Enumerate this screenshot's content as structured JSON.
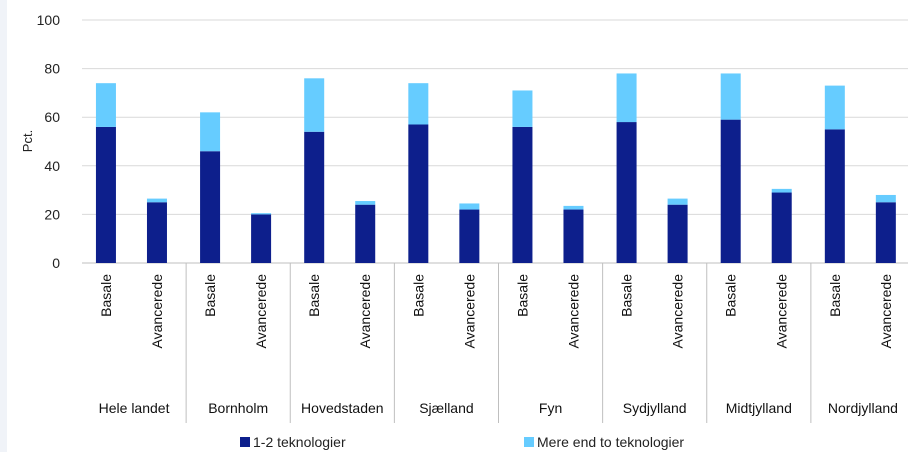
{
  "chart_data": {
    "type": "bar",
    "stacked": true,
    "ylabel": "Pct.",
    "ylim": [
      0,
      100
    ],
    "yticks": [
      0,
      20,
      40,
      60,
      80,
      100
    ],
    "grid": true,
    "legend_position": "bottom",
    "colors": {
      "s1": "#0d1f8c",
      "s2": "#66ccff",
      "grid": "#d9d9d9"
    },
    "groups": [
      {
        "label": "Hele landet",
        "categories": [
          "Basale",
          "Avancerede"
        ]
      },
      {
        "label": "Bornholm",
        "categories": [
          "Basale",
          "Avancerede"
        ]
      },
      {
        "label": "Hovedstaden",
        "categories": [
          "Basale",
          "Avancerede"
        ]
      },
      {
        "label": "Sjælland",
        "categories": [
          "Basale",
          "Avancerede"
        ]
      },
      {
        "label": "Fyn",
        "categories": [
          "Basale",
          "Avancerede"
        ]
      },
      {
        "label": "Sydjylland",
        "categories": [
          "Basale",
          "Avancerede"
        ]
      },
      {
        "label": "Midtjylland",
        "categories": [
          "Basale",
          "Avancerede"
        ]
      },
      {
        "label": "Nordjylland",
        "categories": [
          "Basale",
          "Avancerede"
        ]
      }
    ],
    "series": [
      {
        "name": "1-2 teknologier",
        "values": [
          56,
          25,
          46,
          20,
          54,
          24,
          57,
          22,
          56,
          22,
          58,
          24,
          59,
          29,
          55,
          25
        ]
      },
      {
        "name": "Mere end to teknologier",
        "values": [
          18,
          1.5,
          16,
          0.5,
          22,
          1.5,
          17,
          2.5,
          15,
          1.5,
          20,
          2.5,
          19,
          1.5,
          18,
          3
        ]
      }
    ]
  }
}
